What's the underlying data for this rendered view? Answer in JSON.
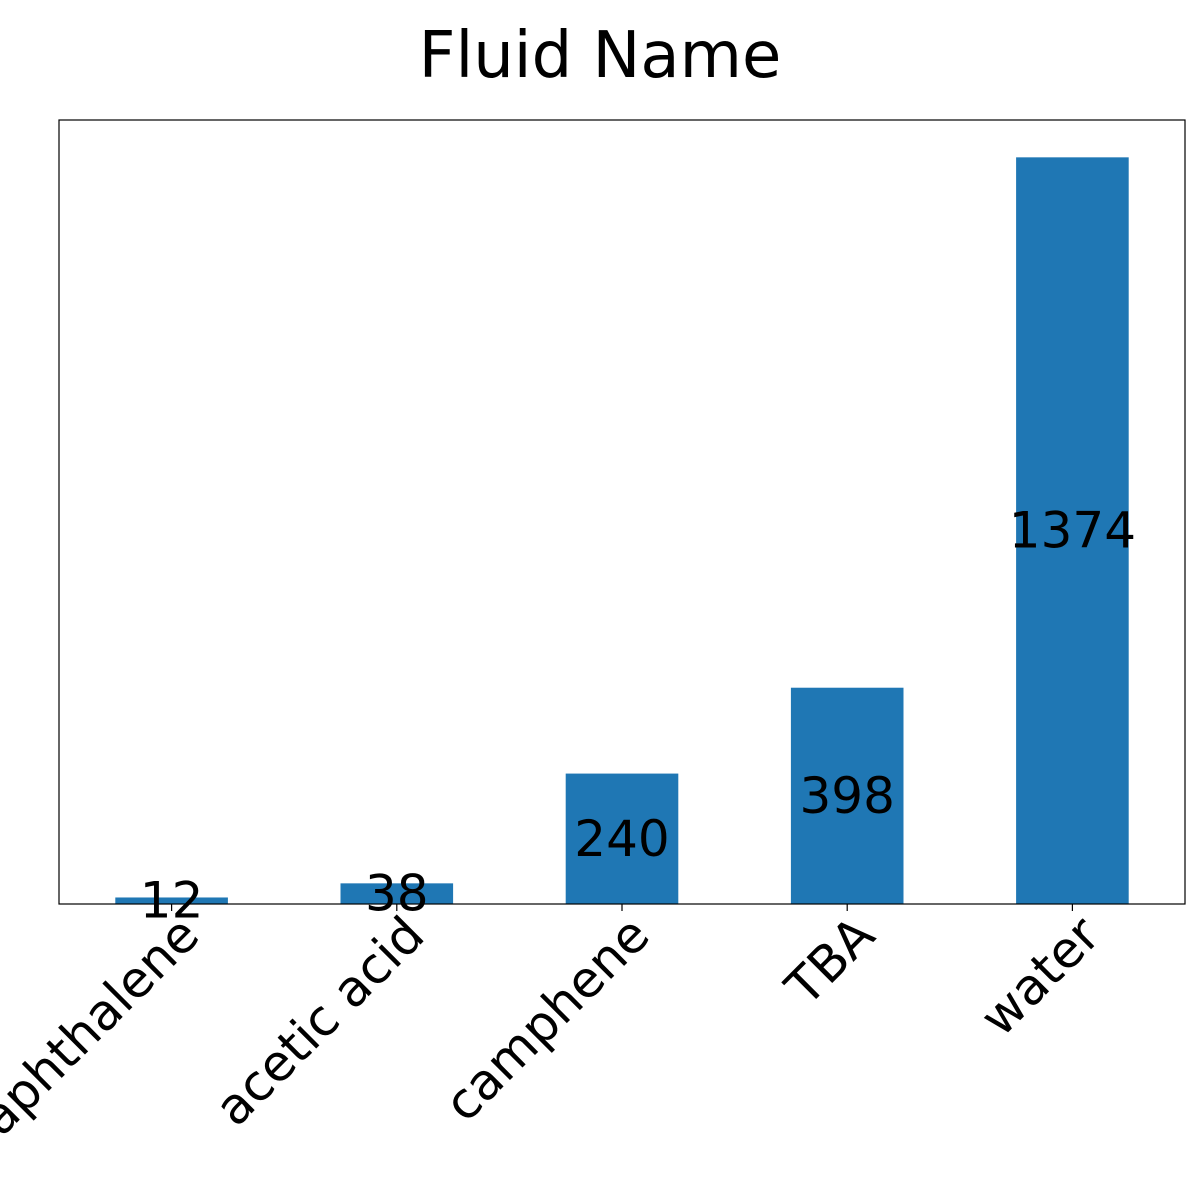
{
  "chart_data": {
    "type": "bar",
    "title": "Fluid Name",
    "xlabel": "",
    "ylabel": "",
    "categories": [
      "naphthalene",
      "acetic acid",
      "camphene",
      "TBA",
      "water"
    ],
    "values": [
      12,
      38,
      240,
      398,
      1374
    ],
    "data_labels": [
      "12",
      "38",
      "240",
      "398",
      "1374"
    ],
    "ylim": [
      0,
      1442.7
    ],
    "y_axis_visible": false,
    "grid": false,
    "legend": "none",
    "bar_color": "#1f77b4",
    "tick_label_rotation": "45 degrees"
  }
}
